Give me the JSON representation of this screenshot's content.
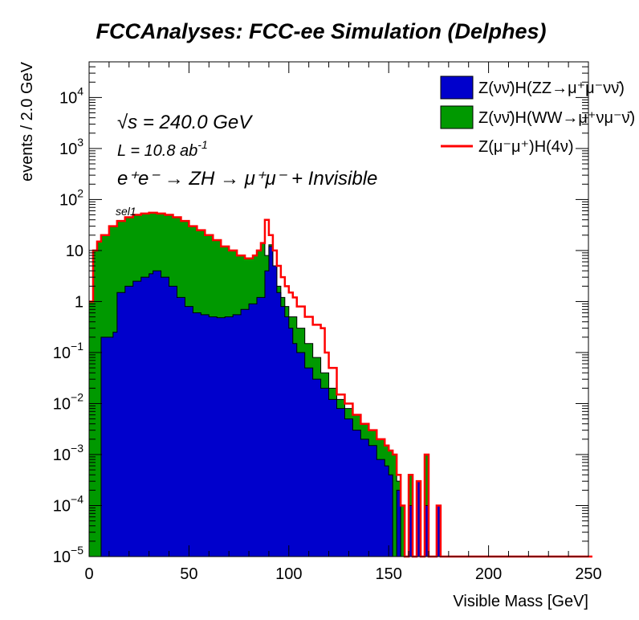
{
  "page": {
    "title": "FCCAnalyses: FCC-ee Simulation (Delphes)"
  },
  "annotations": {
    "energy": "√s = 240.0 GeV",
    "lumi_main": "L = 10.8 ab",
    "lumi_sup": "-1",
    "process": "e⁺e⁻ → ZH → μ⁺μ⁻ + Invisible",
    "selection": "sel1"
  },
  "chart_data": {
    "type": "histogram",
    "xlabel": "Visible Mass [GeV]",
    "ylabel": "events / 2.0 GeV",
    "xlim": [
      0,
      250
    ],
    "ylim": [
      1e-05,
      50000
    ],
    "yscale": "log",
    "bin_width": 2.0,
    "x_ticks": [
      "0",
      "50",
      "100",
      "150",
      "200",
      "250"
    ],
    "y_ticks": [
      {
        "value": 1e-05,
        "base": "10",
        "exp": "−5"
      },
      {
        "value": 0.0001,
        "base": "10",
        "exp": "−4"
      },
      {
        "value": 0.001,
        "base": "10",
        "exp": "−3"
      },
      {
        "value": 0.01,
        "base": "10",
        "exp": "−2"
      },
      {
        "value": 0.1,
        "base": "10",
        "exp": "−1"
      },
      {
        "value": 1,
        "base": "1",
        "exp": ""
      },
      {
        "value": 10,
        "base": "10",
        "exp": ""
      },
      {
        "value": 100,
        "base": "10",
        "exp": "2"
      },
      {
        "value": 1000,
        "base": "10",
        "exp": "3"
      },
      {
        "value": 10000,
        "base": "10",
        "exp": "4"
      }
    ],
    "legend_position": "top-right",
    "series": [
      {
        "name": "Z(νν̄)H(ZZ→μ⁺μ⁻νν̄)",
        "color": "#0000cc",
        "style": "filled-stack",
        "points": [
          [
            0,
            0
          ],
          [
            6,
            0.2
          ],
          [
            12,
            0.25
          ],
          [
            14,
            1.5
          ],
          [
            18,
            2
          ],
          [
            22,
            2.5
          ],
          [
            26,
            3
          ],
          [
            30,
            3.5
          ],
          [
            32,
            4
          ],
          [
            36,
            3
          ],
          [
            40,
            2
          ],
          [
            44,
            1.2
          ],
          [
            48,
            0.8
          ],
          [
            52,
            0.6
          ],
          [
            56,
            0.55
          ],
          [
            60,
            0.5
          ],
          [
            64,
            0.48
          ],
          [
            68,
            0.5
          ],
          [
            72,
            0.55
          ],
          [
            76,
            0.7
          ],
          [
            80,
            0.9
          ],
          [
            84,
            1.2
          ],
          [
            88,
            4
          ],
          [
            90,
            12
          ],
          [
            92,
            5
          ],
          [
            94,
            1.5
          ],
          [
            96,
            0.8
          ],
          [
            98,
            0.5
          ],
          [
            100,
            0.3
          ],
          [
            102,
            0.15
          ],
          [
            104,
            0.1
          ],
          [
            108,
            0.05
          ],
          [
            112,
            0.03
          ],
          [
            116,
            0.02
          ],
          [
            120,
            0.012
          ],
          [
            124,
            0.008
          ],
          [
            128,
            0.005
          ],
          [
            132,
            0.003
          ],
          [
            136,
            0.002
          ],
          [
            140,
            0.0015
          ],
          [
            144,
            0.0008
          ],
          [
            148,
            0.0006
          ],
          [
            150,
            0.0004
          ],
          [
            152,
            0
          ],
          [
            154,
            0.0002
          ],
          [
            156,
            0
          ],
          [
            160,
            0.0001
          ],
          [
            162,
            0
          ],
          [
            164,
            0.0003
          ],
          [
            166,
            0
          ],
          [
            168,
            0.0001
          ],
          [
            170,
            0
          ],
          [
            174,
            0.0001
          ],
          [
            176,
            0
          ]
        ]
      },
      {
        "name": "Z(νν̄)H(WW→μ⁺νμ⁻ν̄)",
        "color": "#009900",
        "style": "filled-stack-total",
        "points": [
          [
            0,
            1
          ],
          [
            2,
            10
          ],
          [
            4,
            15
          ],
          [
            6,
            20
          ],
          [
            10,
            30
          ],
          [
            14,
            38
          ],
          [
            18,
            45
          ],
          [
            22,
            50
          ],
          [
            26,
            53
          ],
          [
            30,
            55
          ],
          [
            34,
            53
          ],
          [
            38,
            50
          ],
          [
            42,
            45
          ],
          [
            46,
            38
          ],
          [
            50,
            30
          ],
          [
            54,
            25
          ],
          [
            58,
            20
          ],
          [
            62,
            16
          ],
          [
            66,
            12
          ],
          [
            70,
            10
          ],
          [
            74,
            8
          ],
          [
            78,
            7
          ],
          [
            82,
            8
          ],
          [
            84,
            10
          ],
          [
            86,
            14
          ],
          [
            88,
            8
          ],
          [
            90,
            13
          ],
          [
            92,
            5
          ],
          [
            94,
            2
          ],
          [
            96,
            1.2
          ],
          [
            98,
            0.8
          ],
          [
            100,
            0.5
          ],
          [
            104,
            0.3
          ],
          [
            108,
            0.15
          ],
          [
            112,
            0.08
          ],
          [
            116,
            0.04
          ],
          [
            120,
            0.02
          ],
          [
            124,
            0.012
          ],
          [
            128,
            0.008
          ],
          [
            132,
            0.006
          ],
          [
            136,
            0.004
          ],
          [
            140,
            0.003
          ],
          [
            144,
            0.002
          ],
          [
            148,
            0.0015
          ],
          [
            150,
            0.0012
          ],
          [
            152,
            0.001
          ],
          [
            154,
            0.0003
          ],
          [
            156,
            0.0001
          ],
          [
            158,
            0
          ],
          [
            160,
            0.0004
          ],
          [
            162,
            0
          ],
          [
            164,
            0.0003
          ],
          [
            166,
            0
          ],
          [
            168,
            0.001
          ],
          [
            170,
            0
          ],
          [
            174,
            0.0001
          ],
          [
            176,
            0
          ]
        ]
      },
      {
        "name": "Z(μ⁻μ⁺)H(4ν)",
        "color": "#ff0000",
        "style": "line",
        "points": [
          [
            0,
            1
          ],
          [
            2,
            10
          ],
          [
            4,
            15
          ],
          [
            6,
            20
          ],
          [
            10,
            30
          ],
          [
            14,
            38
          ],
          [
            18,
            45
          ],
          [
            22,
            50
          ],
          [
            26,
            53
          ],
          [
            30,
            55
          ],
          [
            34,
            53
          ],
          [
            38,
            50
          ],
          [
            42,
            45
          ],
          [
            46,
            38
          ],
          [
            50,
            30
          ],
          [
            54,
            25
          ],
          [
            58,
            20
          ],
          [
            62,
            16
          ],
          [
            66,
            12
          ],
          [
            70,
            10
          ],
          [
            74,
            8
          ],
          [
            78,
            7
          ],
          [
            82,
            8
          ],
          [
            84,
            10
          ],
          [
            86,
            14
          ],
          [
            88,
            40
          ],
          [
            90,
            20
          ],
          [
            92,
            10
          ],
          [
            94,
            5
          ],
          [
            96,
            3
          ],
          [
            98,
            2
          ],
          [
            100,
            1.5
          ],
          [
            102,
            1.2
          ],
          [
            104,
            0.8
          ],
          [
            108,
            0.5
          ],
          [
            112,
            0.35
          ],
          [
            116,
            0.3
          ],
          [
            118,
            0.1
          ],
          [
            120,
            0.05
          ],
          [
            124,
            0.015
          ],
          [
            128,
            0.01
          ],
          [
            132,
            0.006
          ],
          [
            136,
            0.004
          ],
          [
            140,
            0.003
          ],
          [
            144,
            0.002
          ],
          [
            148,
            0.0015
          ],
          [
            150,
            0.0012
          ],
          [
            152,
            0.001
          ],
          [
            154,
            0.0004
          ],
          [
            156,
            0.0001
          ],
          [
            158,
            0
          ],
          [
            160,
            0.0004
          ],
          [
            162,
            0
          ],
          [
            164,
            0.0003
          ],
          [
            166,
            0
          ],
          [
            168,
            0.001
          ],
          [
            170,
            0
          ],
          [
            174,
            0.0001
          ],
          [
            176,
            0
          ],
          [
            250,
            0
          ]
        ]
      }
    ]
  }
}
